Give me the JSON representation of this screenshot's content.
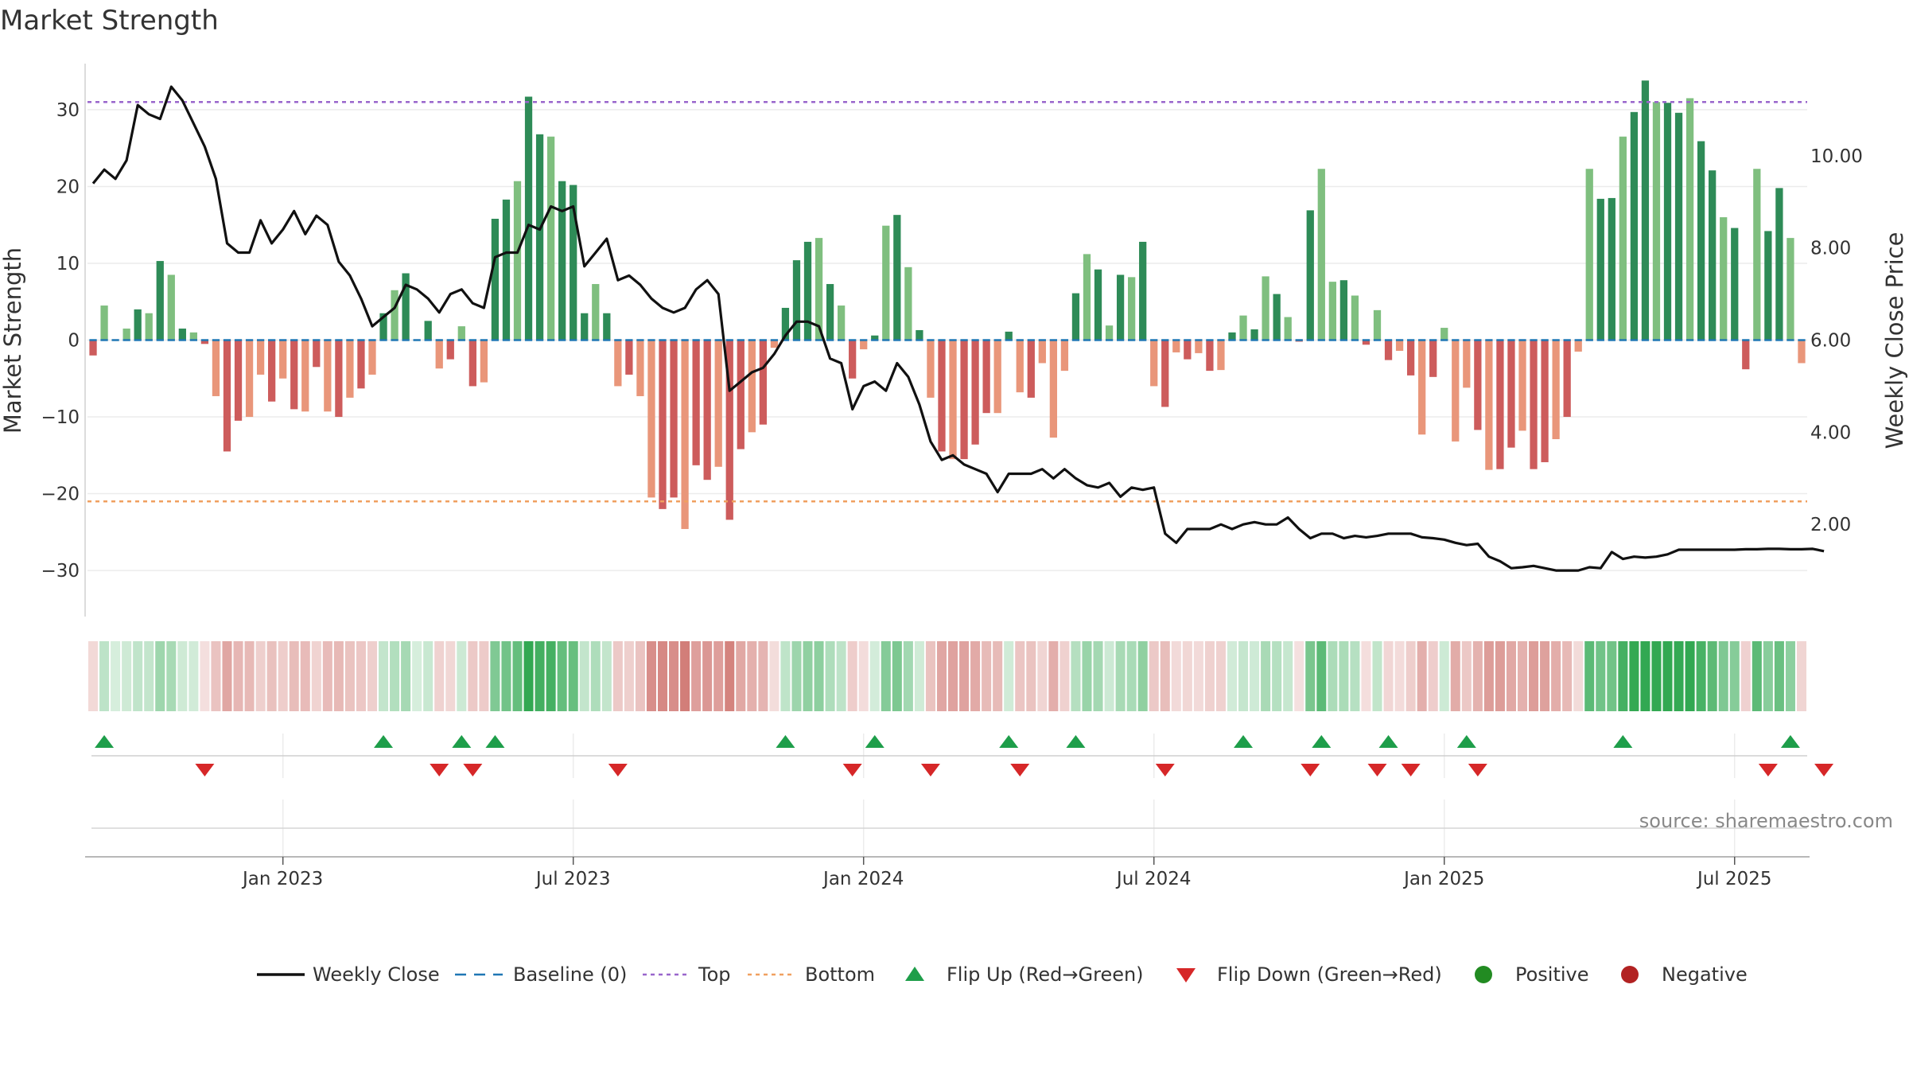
{
  "chart_data": {
    "type": "bar",
    "title": "Market Strength",
    "ylabel_left": "Market Strength",
    "ylabel_right": "Weekly Close Price",
    "left_ylim": [
      -36,
      36
    ],
    "right_ylim": [
      0,
      12
    ],
    "left_ticks": [
      30,
      20,
      10,
      0,
      -10,
      -20,
      -30
    ],
    "left_tick_labels": [
      "30",
      "20",
      "10",
      "0",
      "−10",
      "−20",
      "−30"
    ],
    "right_ticks": [
      10,
      8,
      6,
      4,
      2
    ],
    "right_tick_labels": [
      "10.00",
      "8.00",
      "6.00",
      "4.00",
      "2.00"
    ],
    "x_ticks": [
      {
        "week": 17,
        "label": "Jan 2023"
      },
      {
        "week": 43,
        "label": "Jul 2023"
      },
      {
        "week": 69,
        "label": "Jan 2024"
      },
      {
        "week": 95,
        "label": "Jul 2024"
      },
      {
        "week": 121,
        "label": "Jan 2025"
      },
      {
        "week": 147,
        "label": "Jul 2025"
      }
    ],
    "top_line": 31,
    "bottom_line": -21,
    "strength": [
      -2,
      4.5,
      0,
      1.5,
      4,
      3.5,
      10.3,
      8.5,
      1.5,
      1,
      -0.5,
      -7.3,
      -14.5,
      -10.5,
      -10,
      -4.5,
      -8,
      -5,
      -9,
      -9.3,
      -3.5,
      -9.3,
      -10,
      -7.5,
      -6.3,
      -4.5,
      3.5,
      6.5,
      8.7,
      0,
      2.5,
      -3.7,
      -2.5,
      1.8,
      -6,
      -5.5,
      15.8,
      18.3,
      20.7,
      31.7,
      26.8,
      26.5,
      20.7,
      20.2,
      3.5,
      7.3,
      3.5,
      -6,
      -4.5,
      -7.3,
      -20.5,
      -22,
      -20.5,
      -24.6,
      -16.3,
      -18.2,
      -16.5,
      -23.4,
      -14.2,
      -12,
      -11,
      -1,
      4.2,
      10.4,
      12.8,
      13.3,
      7.3,
      4.5,
      -5,
      -1.2,
      0.6,
      14.9,
      16.3,
      9.5,
      1.3,
      -7.5,
      -14.5,
      -15.5,
      -15.5,
      -13.6,
      -9.5,
      -9.5,
      1.1,
      -6.8,
      -7.5,
      -3,
      -12.7,
      -4,
      6.1,
      11.2,
      9.2,
      1.9,
      8.5,
      8.2,
      12.8,
      -6,
      -8.7,
      -1.6,
      -2.5,
      -1.7,
      -4,
      -3.9,
      1,
      3.2,
      1.4,
      8.3,
      6,
      3,
      -0.2,
      16.9,
      22.3,
      7.6,
      7.8,
      5.8,
      -0.6,
      3.9,
      -2.6,
      -1.4,
      -4.6,
      -12.3,
      -4.8,
      1.6,
      -13.2,
      -6.2,
      -11.7,
      -16.9,
      -16.8,
      -14,
      -11.8,
      -16.8,
      -15.9,
      -12.9,
      -10,
      -1.5,
      22.3,
      18.4,
      18.5,
      26.5,
      29.7,
      33.8,
      31,
      30.9,
      29.6,
      31.5,
      25.9,
      22.1,
      16,
      14.6,
      -3.8,
      22.3,
      14.2,
      19.8,
      13.3,
      -3
    ],
    "close": [
      9.4,
      9.7,
      9.5,
      9.9,
      11.1,
      10.9,
      10.8,
      11.5,
      11.2,
      10.7,
      10.2,
      9.5,
      8.1,
      7.9,
      7.9,
      8.6,
      8.1,
      8.4,
      8.8,
      8.3,
      8.7,
      8.5,
      7.7,
      7.4,
      6.9,
      6.3,
      6.5,
      6.7,
      7.2,
      7.1,
      6.9,
      6.6,
      7,
      7.1,
      6.8,
      6.7,
      7.8,
      7.9,
      7.9,
      8.5,
      8.4,
      8.9,
      8.8,
      8.9,
      7.6,
      7.9,
      8.2,
      7.3,
      7.4,
      7.2,
      6.9,
      6.7,
      6.6,
      6.7,
      7.1,
      7.3,
      7,
      4.9,
      5.1,
      5.3,
      5.4,
      5.7,
      6.1,
      6.4,
      6.4,
      6.3,
      5.6,
      5.5,
      4.5,
      5,
      5.1,
      4.9,
      5.5,
      5.2,
      4.6,
      3.8,
      3.4,
      3.5,
      3.3,
      3.2,
      3.1,
      2.7,
      3.1,
      3.1,
      3.1,
      3.2,
      3,
      3.2,
      3,
      2.85,
      2.8,
      2.9,
      2.6,
      2.8,
      2.75,
      2.8,
      1.8,
      1.6,
      1.9,
      1.9,
      1.9,
      2,
      1.9,
      2,
      2.05,
      2,
      2,
      2.15,
      1.9,
      1.7,
      1.8,
      1.8,
      1.7,
      1.75,
      1.72,
      1.75,
      1.8,
      1.8,
      1.8,
      1.72,
      1.7,
      1.67,
      1.6,
      1.55,
      1.58,
      1.3,
      1.2,
      1.05,
      1.07,
      1.1,
      1.05,
      1,
      1,
      1,
      1.07,
      1.05,
      1.4,
      1.25,
      1.3,
      1.28,
      1.3,
      1.35,
      1.45,
      1.45,
      1.45,
      1.45,
      1.45,
      1.45,
      1.46,
      1.46,
      1.47,
      1.47,
      1.46,
      1.46,
      1.47,
      1.42
    ],
    "flip_up_weeks": [
      1,
      26,
      33,
      36,
      62,
      70,
      82,
      88,
      103,
      110,
      116,
      123,
      137,
      152
    ],
    "flip_down_weeks": [
      10,
      31,
      34,
      47,
      68,
      75,
      83,
      96,
      109,
      115,
      118,
      124,
      150,
      155
    ],
    "legend": [
      "Weekly Close",
      "Baseline (0)",
      "Top",
      "Bottom",
      "Flip Up (Red→Green)",
      "Flip Down (Green→Red)",
      "Positive",
      "Negative"
    ],
    "source": "source: sharemaestro.com"
  },
  "colors": {
    "strong_green": "#2e8b57",
    "light_green": "#7fbf7f",
    "strong_red": "#cd5c5c",
    "light_red": "#e9967a",
    "top_line": "#9966cc",
    "bottom_line": "#f0a060",
    "baseline": "#1f77b4",
    "flip_up": "#1e9e4a",
    "flip_down": "#d62728",
    "positive": "#228b22",
    "negative": "#b22222"
  }
}
